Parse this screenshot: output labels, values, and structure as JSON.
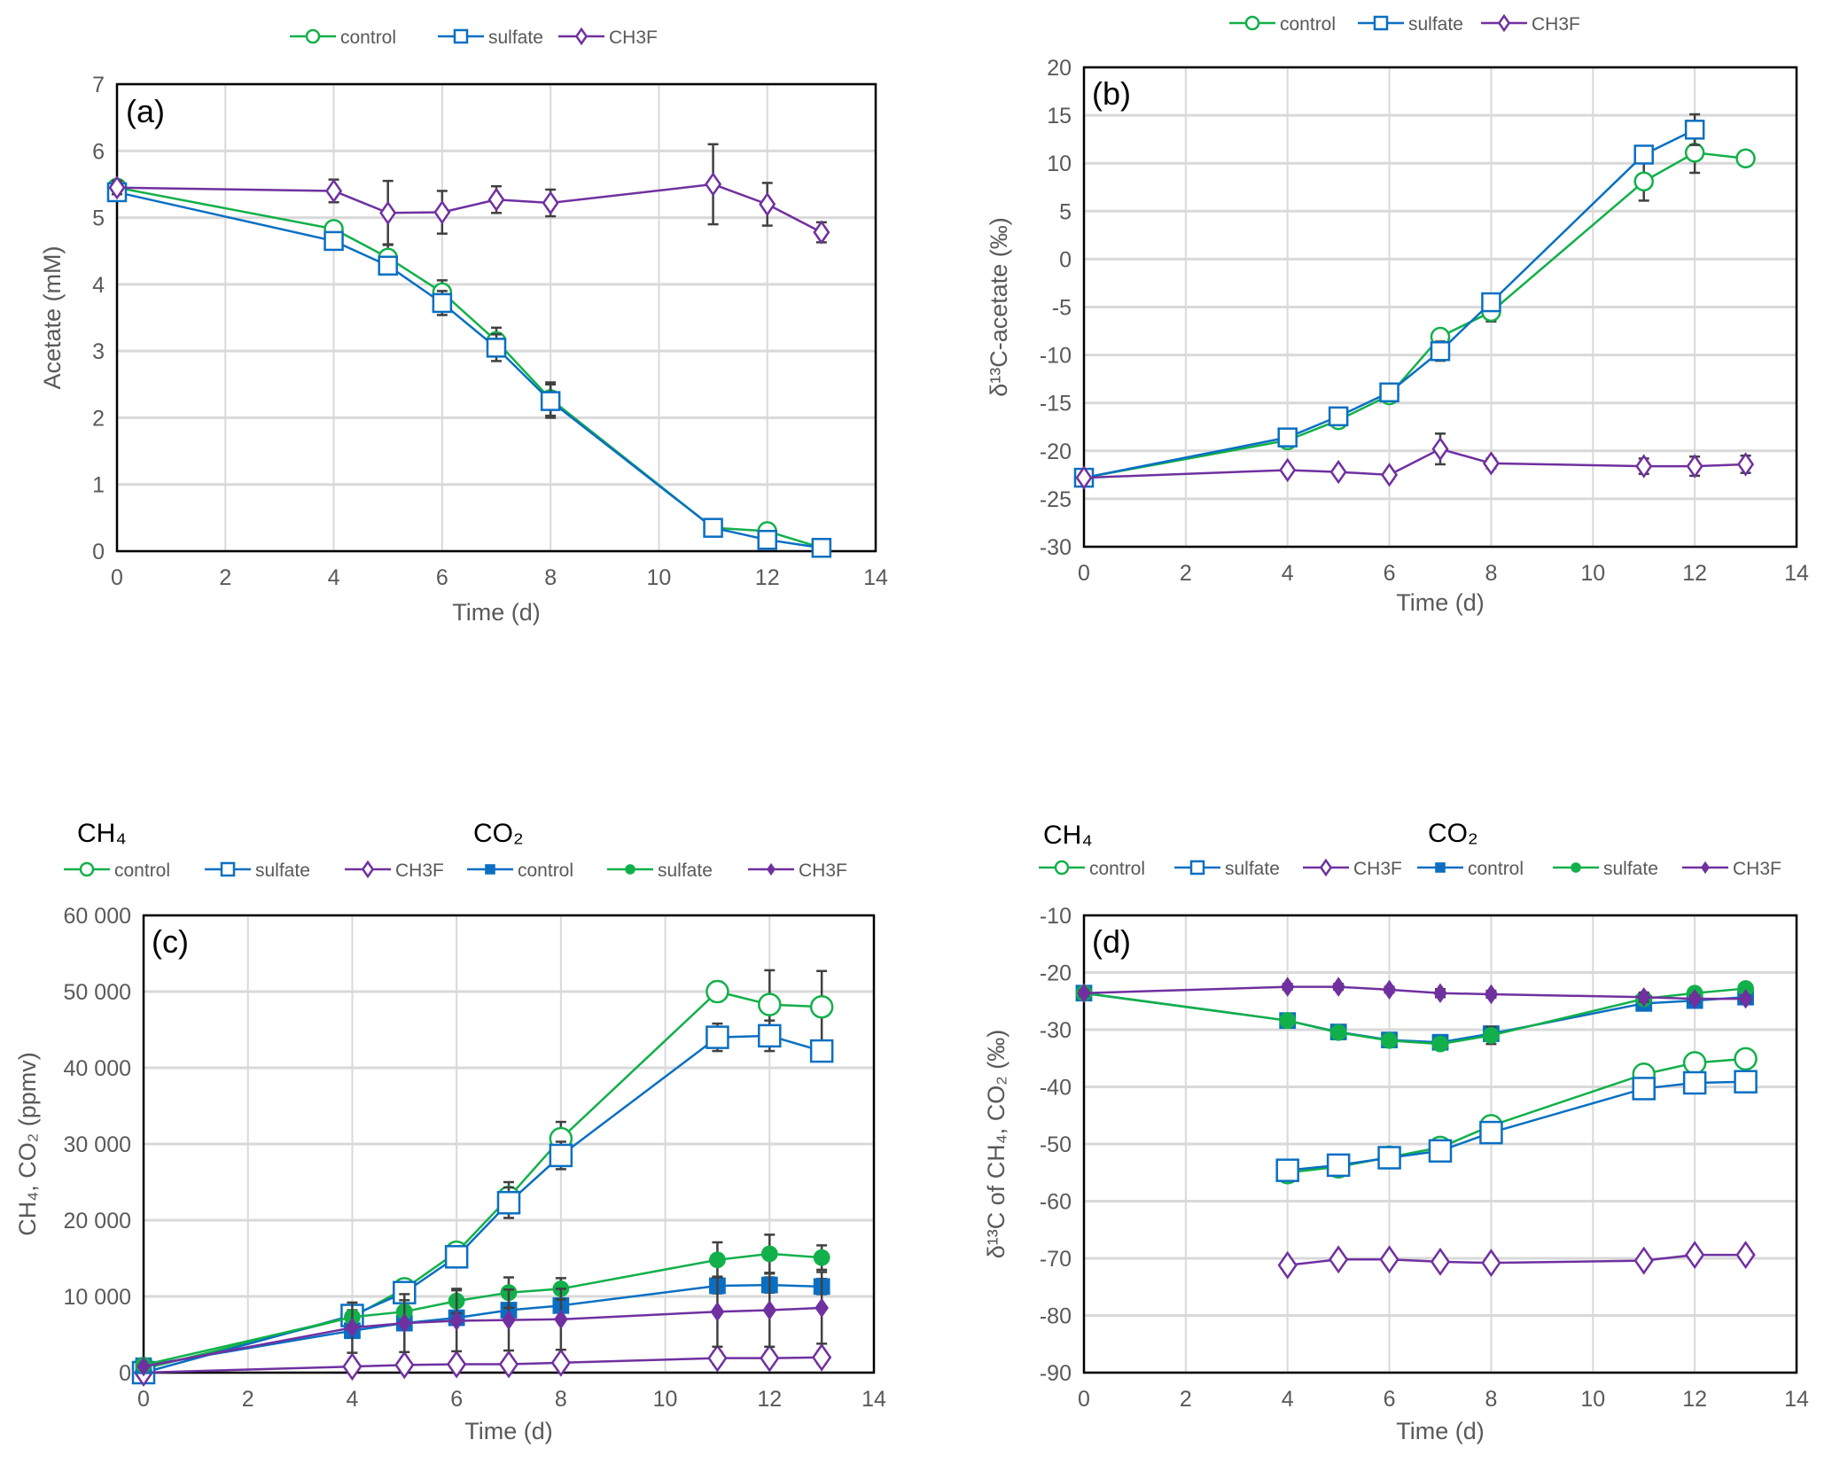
{
  "colors": {
    "green": "#12B04A",
    "blue": "#0A6FC2",
    "purple": "#7030A0",
    "error": "#404040",
    "grid": "#D9D9D9"
  },
  "chart_data": [
    {
      "type": "line",
      "panel_label": "(a)",
      "xlabel": "Time (d)",
      "ylabel": "Acetate (mM)",
      "xlim": [
        0,
        14
      ],
      "xticks": [
        0,
        2,
        4,
        6,
        8,
        10,
        12,
        14
      ],
      "ylim": [
        0,
        7
      ],
      "yticks": [
        0,
        1,
        2,
        3,
        4,
        5,
        6,
        7
      ],
      "ytick_labels": [
        "0",
        "1",
        "2",
        "3",
        "4",
        "5",
        "6",
        "7"
      ],
      "grid": true,
      "legend_placement": "top-center",
      "series": [
        {
          "name": "control",
          "color": "green",
          "marker": "circle-open",
          "x": [
            0,
            4,
            5,
            6,
            7,
            8,
            11,
            12,
            13
          ],
          "y": [
            5.45,
            4.83,
            4.4,
            3.88,
            3.15,
            2.28,
            0.35,
            0.3,
            0.05
          ],
          "err": [
            0.1,
            0.1,
            0.2,
            0.18,
            0.2,
            0.25,
            0.1,
            0.08,
            0.1
          ]
        },
        {
          "name": "sulfate",
          "color": "blue",
          "marker": "square-open",
          "x": [
            0,
            4,
            5,
            6,
            7,
            8,
            11,
            12,
            13
          ],
          "y": [
            5.38,
            4.65,
            4.28,
            3.72,
            3.05,
            2.25,
            0.35,
            0.17,
            0.05
          ],
          "err": [
            0.1,
            0.1,
            0.12,
            0.18,
            0.2,
            0.25,
            0.1,
            0.1,
            0.1
          ]
        },
        {
          "name": "CH3F",
          "color": "purple",
          "marker": "diamond-open",
          "x": [
            0,
            4,
            5,
            6,
            7,
            8,
            11,
            12,
            13
          ],
          "y": [
            5.45,
            5.4,
            5.07,
            5.08,
            5.27,
            5.22,
            5.5,
            5.2,
            4.78
          ],
          "err": [
            0.1,
            0.17,
            0.48,
            0.32,
            0.2,
            0.2,
            0.6,
            0.32,
            0.15
          ]
        }
      ]
    },
    {
      "type": "line",
      "panel_label": "(b)",
      "xlabel": "Time (d)",
      "ylabel": "δ¹³C-acetate (‰)",
      "xlim": [
        0,
        14
      ],
      "xticks": [
        0,
        2,
        4,
        6,
        8,
        10,
        12,
        14
      ],
      "ylim": [
        -30,
        20
      ],
      "yticks": [
        -30,
        -25,
        -20,
        -15,
        -10,
        -5,
        0,
        5,
        10,
        15,
        20
      ],
      "ytick_labels": [
        "-30",
        "-25",
        "-20",
        "-15",
        "-10",
        "-5",
        "0",
        "5",
        "10",
        "15",
        "20"
      ],
      "grid": true,
      "legend_placement": "top-center",
      "series": [
        {
          "name": "control",
          "color": "green",
          "marker": "circle-open",
          "x": [
            0,
            4,
            5,
            6,
            7,
            8,
            11,
            12,
            13
          ],
          "y": [
            -22.8,
            -18.9,
            -16.8,
            -14.2,
            -8.1,
            -5.5,
            8.1,
            11.1,
            10.5
          ],
          "err": [
            0.3,
            0.5,
            0.6,
            0.4,
            0.6,
            1.0,
            2.0,
            2.1,
            0
          ]
        },
        {
          "name": "sulfate",
          "color": "blue",
          "marker": "square-open",
          "x": [
            0,
            4,
            5,
            6,
            7,
            8,
            11,
            12
          ],
          "y": [
            -22.8,
            -18.6,
            -16.4,
            -13.9,
            -9.6,
            -4.5,
            10.9,
            13.5
          ],
          "err": [
            0.3,
            0.4,
            0.6,
            0.4,
            1.0,
            0.8,
            0.5,
            1.6
          ]
        },
        {
          "name": "CH3F",
          "color": "purple",
          "marker": "diamond-open",
          "x": [
            0,
            4,
            5,
            6,
            7,
            8,
            11,
            12,
            13
          ],
          "y": [
            -22.8,
            -22.0,
            -22.2,
            -22.5,
            -19.8,
            -21.3,
            -21.6,
            -21.6,
            -21.4
          ],
          "err": [
            0.3,
            0.3,
            0.3,
            0.4,
            1.6,
            0.5,
            0.8,
            1.0,
            0.9
          ]
        }
      ]
    },
    {
      "type": "line",
      "panel_label": "(c)",
      "group_titles": [
        "CH₄",
        "CO₂"
      ],
      "xlabel": "Time (d)",
      "ylabel": "CH₄, CO₂  (ppmv)",
      "xlim": [
        0,
        14
      ],
      "xticks": [
        0,
        2,
        4,
        6,
        8,
        10,
        12,
        14
      ],
      "ylim": [
        0,
        60000
      ],
      "yticks": [
        0,
        10000,
        20000,
        30000,
        40000,
        50000,
        60000
      ],
      "ytick_labels": [
        "0",
        "10 000",
        "20 000",
        "30 000",
        "40 000",
        "50 000",
        "60 000"
      ],
      "grid": true,
      "legend_placement": "top",
      "series": [
        {
          "name": "control",
          "group": "CH₄",
          "color": "green",
          "marker": "circle-open",
          "x": [
            0,
            4,
            5,
            6,
            7,
            8,
            11,
            12,
            13
          ],
          "y": [
            500,
            7300,
            11000,
            15800,
            23000,
            30700,
            50000,
            48300,
            48000
          ],
          "err": [
            300,
            400,
            600,
            1200,
            2000,
            2200,
            1300,
            4500,
            4700
          ]
        },
        {
          "name": "sulfate",
          "group": "CH₄",
          "color": "blue",
          "marker": "square-open",
          "x": [
            0,
            4,
            5,
            6,
            7,
            8,
            11,
            12,
            13
          ],
          "y": [
            0,
            7500,
            10500,
            15200,
            22300,
            28500,
            44000,
            44200,
            42200
          ],
          "err": [
            300,
            400,
            600,
            1200,
            2000,
            1800,
            1800,
            2000,
            500
          ]
        },
        {
          "name": "CH3F",
          "group": "CH₄",
          "color": "purple",
          "marker": "diamond-open",
          "x": [
            0,
            4,
            5,
            6,
            7,
            8,
            11,
            12,
            13
          ],
          "y": [
            0,
            800,
            1000,
            1100,
            1100,
            1300,
            1900,
            1900,
            2000
          ],
          "err": [
            100,
            400,
            500,
            500,
            500,
            500,
            800,
            800,
            800
          ]
        },
        {
          "name": "control",
          "group": "CO₂",
          "color": "blue",
          "marker": "square-filled",
          "x": [
            0,
            4,
            5,
            6,
            7,
            8,
            11,
            12,
            13
          ],
          "y": [
            900,
            5500,
            6500,
            7200,
            8200,
            8800,
            11400,
            11500,
            11300
          ],
          "err": [
            200,
            600,
            700,
            800,
            900,
            900,
            1000,
            1000,
            1000
          ]
        },
        {
          "name": "sulfate",
          "group": "CO₂",
          "color": "green",
          "marker": "circle-filled",
          "x": [
            0,
            4,
            5,
            6,
            7,
            8,
            11,
            12,
            13
          ],
          "y": [
            1000,
            7300,
            8000,
            9400,
            10500,
            11000,
            14800,
            15600,
            15100
          ],
          "err": [
            200,
            900,
            1500,
            1600,
            2000,
            1400,
            2300,
            2500,
            1600
          ]
        },
        {
          "name": "CH3F",
          "group": "CO₂",
          "color": "purple",
          "marker": "diamond-filled",
          "x": [
            0,
            4,
            5,
            6,
            7,
            8,
            11,
            12,
            13
          ],
          "y": [
            800,
            5900,
            6500,
            6800,
            6900,
            7000,
            8000,
            8200,
            8500
          ],
          "err": [
            200,
            3300,
            3800,
            4000,
            4000,
            4000,
            4600,
            4800,
            4700
          ]
        }
      ]
    },
    {
      "type": "line",
      "panel_label": "(d)",
      "group_titles": [
        "CH₄",
        "CO₂"
      ],
      "xlabel": "Time (d)",
      "ylabel": "δ¹³C of CH₄, CO₂ (‰)",
      "xlim": [
        0,
        14
      ],
      "xticks": [
        0,
        2,
        4,
        6,
        8,
        10,
        12,
        14
      ],
      "ylim": [
        -90,
        -10
      ],
      "yticks": [
        -90,
        -80,
        -70,
        -60,
        -50,
        -40,
        -30,
        -20,
        -10
      ],
      "ytick_labels": [
        "-90",
        "-80",
        "-70",
        "-60",
        "-50",
        "-40",
        "-30",
        "-20",
        "-10"
      ],
      "grid": true,
      "legend_placement": "top",
      "series": [
        {
          "name": "control",
          "group": "CH₄",
          "color": "green",
          "marker": "circle-open",
          "x": [
            4,
            5,
            6,
            7,
            8,
            11,
            12,
            13
          ],
          "y": [
            -55.0,
            -54.0,
            -52.3,
            -50.6,
            -46.8,
            -37.8,
            -35.8,
            -35.1
          ],
          "err": [
            0.5,
            0.5,
            0.5,
            0.5,
            0.5,
            0.8,
            0.5,
            0.5
          ]
        },
        {
          "name": "sulfate",
          "group": "CH₄",
          "color": "blue",
          "marker": "square-open",
          "x": [
            4,
            5,
            6,
            7,
            8,
            11,
            12,
            13
          ],
          "y": [
            -54.6,
            -53.7,
            -52.4,
            -51.2,
            -48.0,
            -40.3,
            -39.3,
            -39.1
          ],
          "err": [
            0.5,
            0.5,
            0.5,
            0.5,
            0.5,
            0.8,
            0.5,
            0.5
          ]
        },
        {
          "name": "CH3F",
          "group": "CH₄",
          "color": "purple",
          "marker": "diamond-open",
          "x": [
            4,
            5,
            6,
            7,
            8,
            11,
            12,
            13
          ],
          "y": [
            -71.2,
            -70.2,
            -70.2,
            -70.6,
            -70.8,
            -70.4,
            -69.4,
            -69.4
          ],
          "err": [
            0.3,
            0.3,
            0.3,
            0.3,
            0.3,
            0.3,
            0.3,
            0.3
          ]
        },
        {
          "name": "control",
          "group": "CO₂",
          "color": "blue",
          "marker": "square-filled",
          "x": [
            0,
            4,
            5,
            6,
            7,
            8,
            11,
            12,
            13
          ],
          "y": [
            -23.6,
            -28.4,
            -30.4,
            -31.8,
            -32.2,
            -30.7,
            -25.4,
            -24.9,
            -24.3
          ],
          "err": [
            0.5,
            0.6,
            0.6,
            0.8,
            0.8,
            1.2,
            0.6,
            0.5,
            0.5
          ]
        },
        {
          "name": "sulfate",
          "group": "CO₂",
          "color": "green",
          "marker": "circle-filled",
          "x": [
            0,
            4,
            5,
            6,
            7,
            8,
            11,
            12,
            13
          ],
          "y": [
            -23.6,
            -28.4,
            -30.5,
            -31.9,
            -32.5,
            -31.0,
            -24.6,
            -23.6,
            -22.8
          ],
          "err": [
            0.5,
            0.6,
            0.6,
            0.8,
            0.8,
            1.5,
            0.6,
            0.5,
            0.5
          ]
        },
        {
          "name": "CH3F",
          "group": "CO₂",
          "color": "purple",
          "marker": "diamond-filled",
          "x": [
            0,
            4,
            5,
            6,
            7,
            8,
            11,
            12,
            13
          ],
          "y": [
            -23.6,
            -22.5,
            -22.5,
            -23.0,
            -23.6,
            -23.8,
            -24.3,
            -24.6,
            -24.6
          ],
          "err": [
            0.5,
            0.5,
            0.5,
            0.5,
            0.7,
            0.6,
            0.8,
            0.6,
            0.6
          ]
        }
      ]
    }
  ]
}
